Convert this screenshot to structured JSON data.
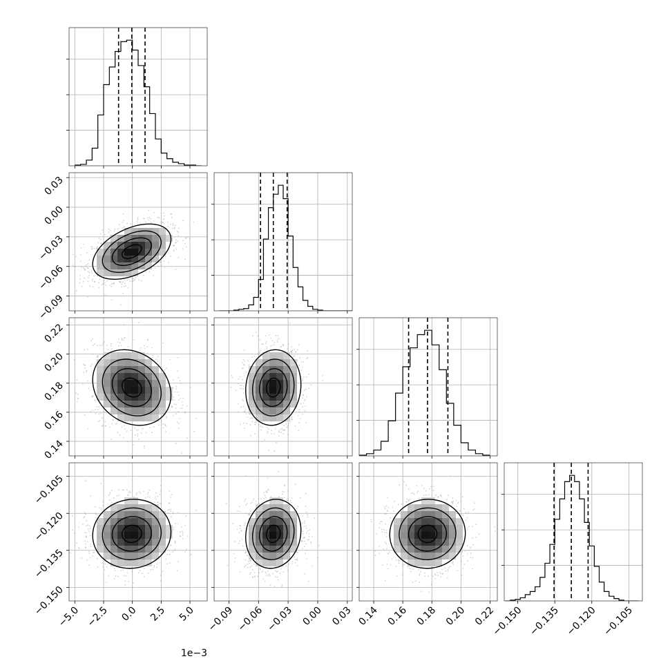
{
  "chart_data": {
    "type": "corner",
    "title": "",
    "params": [
      {
        "index": 0,
        "range": [
          -5.5,
          6.5
        ],
        "ticks": [
          -5.0,
          -2.5,
          0.0,
          2.5,
          5.0
        ],
        "tick_labels": [
          "−5.0",
          "−2.5",
          "0.0",
          "2.5",
          "5.0"
        ],
        "offset_text": "1e−3"
      },
      {
        "index": 1,
        "range": [
          -0.105,
          0.035
        ],
        "ticks": [
          -0.09,
          -0.06,
          -0.03,
          0.0,
          0.03
        ],
        "tick_labels": [
          "−0.09",
          "−0.06",
          "−0.03",
          "0.00",
          "0.03"
        ],
        "offset_text": ""
      },
      {
        "index": 2,
        "range": [
          0.13,
          0.225
        ],
        "ticks": [
          0.14,
          0.16,
          0.18,
          0.2,
          0.22
        ],
        "tick_labels": [
          "0.14",
          "0.16",
          "0.18",
          "0.20",
          "0.22"
        ],
        "offset_text": ""
      },
      {
        "index": 3,
        "range": [
          -0.1555,
          -0.0995
        ],
        "ticks": [
          -0.15,
          -0.135,
          -0.12,
          -0.105
        ],
        "tick_labels": [
          "−0.150",
          "−0.135",
          "−0.120",
          "−0.105"
        ],
        "offset_text": ""
      }
    ],
    "histograms": [
      {
        "param": 0,
        "bin_edges": [
          -5.0,
          -4.5,
          -4.0,
          -3.5,
          -3.0,
          -2.5,
          -2.0,
          -1.5,
          -1.0,
          -0.5,
          0.0,
          0.5,
          1.0,
          1.5,
          2.0,
          2.5,
          3.0,
          3.5,
          4.0,
          4.5,
          5.0,
          5.5,
          6.0
        ],
        "counts": [
          1,
          2,
          8,
          25,
          72,
          115,
          140,
          162,
          176,
          178,
          164,
          142,
          112,
          74,
          38,
          18,
          10,
          5,
          3,
          1,
          1,
          0
        ],
        "quantiles": [
          -1.2,
          -0.05,
          1.1
        ]
      },
      {
        "param": 1,
        "bin_edges": [
          -0.1,
          -0.095,
          -0.09,
          -0.085,
          -0.08,
          -0.075,
          -0.07,
          -0.065,
          -0.06,
          -0.055,
          -0.05,
          -0.045,
          -0.04,
          -0.035,
          -0.03,
          -0.025,
          -0.02,
          -0.015,
          -0.01,
          -0.005,
          0.0,
          0.005,
          0.01,
          0.015,
          0.02,
          0.025,
          0.03,
          0.035
        ],
        "counts": [
          0,
          0,
          0,
          1,
          2,
          3,
          8,
          18,
          42,
          96,
          138,
          156,
          168,
          150,
          100,
          58,
          32,
          14,
          6,
          2,
          1,
          0,
          0,
          0,
          0,
          0,
          0
        ],
        "quantiles": [
          -0.058,
          -0.045,
          -0.031
        ]
      },
      {
        "param": 2,
        "bin_edges": [
          0.13,
          0.135,
          0.14,
          0.145,
          0.15,
          0.155,
          0.16,
          0.165,
          0.17,
          0.175,
          0.18,
          0.185,
          0.19,
          0.195,
          0.2,
          0.205,
          0.21,
          0.215,
          0.22
        ],
        "counts": [
          1,
          3,
          8,
          20,
          48,
          86,
          122,
          148,
          166,
          172,
          152,
          118,
          72,
          42,
          18,
          8,
          3,
          1
        ],
        "quantiles": [
          0.164,
          0.177,
          0.191
        ]
      },
      {
        "param": 3,
        "bin_edges": [
          -0.155,
          -0.153,
          -0.151,
          -0.149,
          -0.147,
          -0.145,
          -0.143,
          -0.141,
          -0.139,
          -0.137,
          -0.135,
          -0.133,
          -0.131,
          -0.129,
          -0.127,
          -0.125,
          -0.123,
          -0.121,
          -0.119,
          -0.117,
          -0.115,
          -0.113,
          -0.111,
          -0.109,
          -0.107,
          -0.105,
          -0.103,
          -0.101
        ],
        "counts": [
          0,
          1,
          2,
          4,
          8,
          12,
          18,
          30,
          48,
          72,
          104,
          130,
          152,
          160,
          152,
          130,
          100,
          70,
          44,
          24,
          12,
          6,
          3,
          1,
          0,
          0,
          0
        ],
        "quantiles": [
          -0.1353,
          -0.1283,
          -0.1215
        ]
      }
    ],
    "pairs": [
      {
        "x": 0,
        "y": 1,
        "mean": [
          -0.05,
          -0.045
        ],
        "std": [
          1.7,
          0.014
        ],
        "corr": 0.45
      },
      {
        "x": 0,
        "y": 2,
        "mean": [
          -0.05,
          0.177
        ],
        "std": [
          1.7,
          0.013
        ],
        "corr": -0.2
      },
      {
        "x": 1,
        "y": 2,
        "mean": [
          -0.045,
          0.177
        ],
        "std": [
          0.014,
          0.013
        ],
        "corr": 0.08
      },
      {
        "x": 0,
        "y": 3,
        "mean": [
          -0.05,
          -0.1283
        ],
        "std": [
          1.7,
          0.007
        ],
        "corr": 0.05
      },
      {
        "x": 1,
        "y": 3,
        "mean": [
          -0.045,
          -0.1283
        ],
        "std": [
          0.014,
          0.007
        ],
        "corr": 0.1
      },
      {
        "x": 2,
        "y": 3,
        "mean": [
          0.177,
          -0.1283
        ],
        "std": [
          0.013,
          0.007
        ],
        "corr": 0.02
      }
    ],
    "contour_sigma_levels": [
      0.5,
      1.0,
      1.5,
      2.0
    ],
    "grid": true,
    "colors": {
      "ink": "#000000",
      "grid": "#b0b0b0",
      "scatter": "#9a9a9a",
      "frame": "#444444"
    }
  }
}
